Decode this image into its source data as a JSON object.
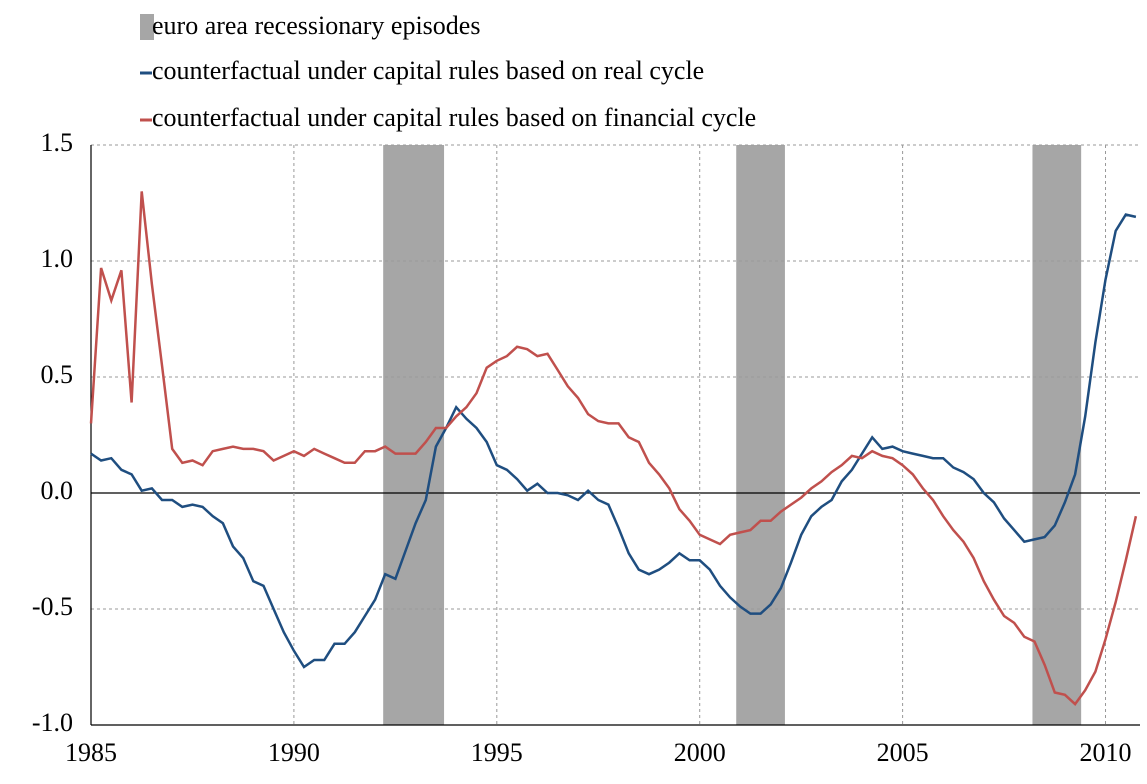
{
  "chart_data": {
    "type": "line",
    "x": [
      1985,
      1985.25,
      1985.5,
      1985.75,
      1986,
      1986.25,
      1986.5,
      1986.75,
      1987,
      1987.25,
      1987.5,
      1987.75,
      1988,
      1988.25,
      1988.5,
      1988.75,
      1989,
      1989.25,
      1989.5,
      1989.75,
      1990,
      1990.25,
      1990.5,
      1990.75,
      1991,
      1991.25,
      1991.5,
      1991.75,
      1992,
      1992.25,
      1992.5,
      1992.75,
      1993,
      1993.25,
      1993.5,
      1993.75,
      1994,
      1994.25,
      1994.5,
      1994.75,
      1995,
      1995.25,
      1995.5,
      1995.75,
      1996,
      1996.25,
      1996.5,
      1996.75,
      1997,
      1997.25,
      1997.5,
      1997.75,
      1998,
      1998.25,
      1998.5,
      1998.75,
      1999,
      1999.25,
      1999.5,
      1999.75,
      2000,
      2000.25,
      2000.5,
      2000.75,
      2001,
      2001.25,
      2001.5,
      2001.75,
      2002,
      2002.25,
      2002.5,
      2002.75,
      2003,
      2003.25,
      2003.5,
      2003.75,
      2004,
      2004.25,
      2004.5,
      2004.75,
      2005,
      2005.25,
      2005.5,
      2005.75,
      2006,
      2006.25,
      2006.5,
      2006.75,
      2007,
      2007.25,
      2007.5,
      2007.75,
      2008,
      2008.25,
      2008.5,
      2008.75,
      2009,
      2009.25,
      2009.5,
      2009.75,
      2010,
      2010.25,
      2010.5,
      2010.75
    ],
    "series": [
      {
        "name": "counterfactual under capital rules based on real cycle",
        "color": "#1f4e80",
        "values": [
          0.17,
          0.14,
          0.15,
          0.1,
          0.08,
          0.01,
          0.02,
          -0.03,
          -0.03,
          -0.06,
          -0.05,
          -0.06,
          -0.1,
          -0.13,
          -0.23,
          -0.28,
          -0.38,
          -0.4,
          -0.5,
          -0.6,
          -0.68,
          -0.75,
          -0.72,
          -0.72,
          -0.65,
          -0.65,
          -0.6,
          -0.53,
          -0.46,
          -0.35,
          -0.37,
          -0.25,
          -0.13,
          -0.03,
          0.2,
          0.28,
          0.37,
          0.32,
          0.28,
          0.22,
          0.12,
          0.1,
          0.06,
          0.01,
          0.04,
          0.0,
          0.0,
          -0.01,
          -0.03,
          0.01,
          -0.03,
          -0.05,
          -0.15,
          -0.26,
          -0.33,
          -0.35,
          -0.33,
          -0.3,
          -0.26,
          -0.29,
          -0.29,
          -0.33,
          -0.4,
          -0.45,
          -0.49,
          -0.52,
          -0.52,
          -0.48,
          -0.41,
          -0.3,
          -0.18,
          -0.1,
          -0.06,
          -0.03,
          0.05,
          0.1,
          0.17,
          0.24,
          0.19,
          0.2,
          0.18,
          0.17,
          0.16,
          0.15,
          0.15,
          0.11,
          0.09,
          0.06,
          0.0,
          -0.04,
          -0.11,
          -0.16,
          -0.21,
          -0.2,
          -0.19,
          -0.14,
          -0.04,
          0.08,
          0.33,
          0.65,
          0.92,
          1.13,
          1.2,
          1.19
        ]
      },
      {
        "name": "counterfactual under capital rules based on financial cycle",
        "color": "#c0504d",
        "values": [
          0.3,
          0.97,
          0.83,
          0.96,
          0.39,
          1.3,
          0.9,
          0.55,
          0.19,
          0.13,
          0.14,
          0.12,
          0.18,
          0.19,
          0.2,
          0.19,
          0.19,
          0.18,
          0.14,
          0.16,
          0.18,
          0.16,
          0.19,
          0.17,
          0.15,
          0.13,
          0.13,
          0.18,
          0.18,
          0.2,
          0.17,
          0.17,
          0.17,
          0.22,
          0.28,
          0.28,
          0.33,
          0.37,
          0.43,
          0.54,
          0.57,
          0.59,
          0.63,
          0.62,
          0.59,
          0.6,
          0.53,
          0.46,
          0.41,
          0.34,
          0.31,
          0.3,
          0.3,
          0.24,
          0.22,
          0.13,
          0.08,
          0.02,
          -0.07,
          -0.12,
          -0.18,
          -0.2,
          -0.22,
          -0.18,
          -0.17,
          -0.16,
          -0.12,
          -0.12,
          -0.08,
          -0.05,
          -0.02,
          0.02,
          0.05,
          0.09,
          0.12,
          0.16,
          0.15,
          0.18,
          0.16,
          0.15,
          0.12,
          0.08,
          0.02,
          -0.03,
          -0.1,
          -0.16,
          -0.21,
          -0.28,
          -0.38,
          -0.46,
          -0.53,
          -0.56,
          -0.62,
          -0.64,
          -0.74,
          -0.86,
          -0.87,
          -0.91,
          -0.85,
          -0.77,
          -0.63,
          -0.47,
          -0.29,
          -0.1
        ]
      }
    ],
    "shading": {
      "name": "euro area recessionary episodes",
      "color": "#a6a6a6",
      "ranges": [
        [
          1992.2,
          1993.7
        ],
        [
          2000.9,
          2002.1
        ],
        [
          2008.2,
          2009.4
        ]
      ]
    },
    "xlim": [
      1985,
      2010.85
    ],
    "xticks": [
      1985,
      1990,
      1995,
      2000,
      2005,
      2010
    ],
    "ylim": [
      -1.0,
      1.5
    ],
    "yticks": [
      {
        "value": -1,
        "label": "-1.0"
      },
      -0.5,
      {
        "value": 0,
        "label": "0.0"
      },
      0.5,
      {
        "value": 1,
        "label": "1.0"
      },
      1.5
    ],
    "grid": true
  }
}
